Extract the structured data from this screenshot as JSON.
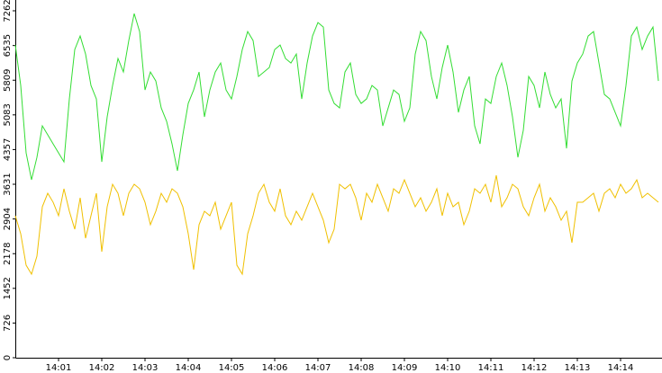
{
  "chart_data": {
    "type": "line",
    "categories": [
      null,
      null,
      null,
      null,
      null,
      null,
      null,
      null,
      "14:01",
      null,
      null,
      null,
      null,
      null,
      null,
      null,
      "14:02",
      null,
      null,
      null,
      null,
      null,
      null,
      null,
      "14:03",
      null,
      null,
      null,
      null,
      null,
      null,
      null,
      "14:04",
      null,
      null,
      null,
      null,
      null,
      null,
      null,
      "14:05",
      null,
      null,
      null,
      null,
      null,
      null,
      null,
      "14:06",
      null,
      null,
      null,
      null,
      null,
      null,
      null,
      "14:07",
      null,
      null,
      null,
      null,
      null,
      null,
      null,
      "14:08",
      null,
      null,
      null,
      null,
      null,
      null,
      null,
      "14:09",
      null,
      null,
      null,
      null,
      null,
      null,
      null,
      "14:10",
      null,
      null,
      null,
      null,
      null,
      null,
      null,
      "14:11",
      null,
      null,
      null,
      null,
      null,
      null,
      null,
      "14:12",
      null,
      null,
      null,
      null,
      null,
      null,
      null,
      "14:13",
      null,
      null,
      null,
      null,
      null,
      null,
      null,
      "14:14",
      null,
      null,
      null,
      null,
      null,
      null,
      null
    ],
    "series": [
      {
        "color": "#33dd33",
        "values": [
          6545,
          5699,
          4288,
          3724,
          4194,
          4853,
          4665,
          4476,
          4288,
          4100,
          5417,
          6451,
          6734,
          6357,
          5699,
          5417,
          4100,
          5041,
          5699,
          6263,
          5981,
          6640,
          7204,
          6828,
          5605,
          5981,
          5793,
          5229,
          4947,
          4476,
          3912,
          4665,
          5323,
          5605,
          5981,
          5041,
          5605,
          5981,
          6169,
          5605,
          5417,
          5887,
          6451,
          6828,
          6640,
          5887,
          5981,
          6075,
          6451,
          6545,
          6263,
          6169,
          6357,
          5417,
          6169,
          6734,
          7016,
          6922,
          5605,
          5323,
          5229,
          5981,
          6169,
          5511,
          5323,
          5417,
          5699,
          5605,
          4853,
          5229,
          5605,
          5511,
          4947,
          5229,
          6357,
          6828,
          6640,
          5887,
          5417,
          6075,
          6545,
          5981,
          5136,
          5605,
          5887,
          4853,
          4476,
          5417,
          5323,
          5887,
          6169,
          5699,
          5041,
          4194,
          4759,
          5887,
          5699,
          5229,
          5981,
          5511,
          5229,
          5417,
          4382,
          5793,
          6169,
          6357,
          6734,
          6828,
          6169,
          5511,
          5417,
          5136,
          4853,
          5699,
          6734,
          6922,
          6451,
          6734,
          6922,
          5793
        ]
      },
      {
        "color": "#f0c000",
        "values": [
          2972,
          2595,
          1937,
          1749,
          2125,
          3160,
          3442,
          3254,
          2972,
          3536,
          3066,
          2690,
          3348,
          2501,
          2972,
          3442,
          2219,
          3160,
          3630,
          3442,
          2972,
          3442,
          3630,
          3536,
          3254,
          2784,
          3066,
          3442,
          3254,
          3536,
          3442,
          3160,
          2595,
          1843,
          2784,
          3066,
          2972,
          3254,
          2690,
          2972,
          3254,
          1937,
          1749,
          2595,
          2972,
          3442,
          3630,
          3254,
          3066,
          3536,
          2972,
          2784,
          3066,
          2878,
          3160,
          3442,
          3160,
          2878,
          2407,
          2690,
          3630,
          3536,
          3630,
          3348,
          2878,
          3442,
          3254,
          3630,
          3348,
          3066,
          3536,
          3442,
          3724,
          3442,
          3160,
          3348,
          3066,
          3254,
          3536,
          2972,
          3442,
          3160,
          3254,
          2784,
          3066,
          3536,
          3442,
          3630,
          3254,
          3818,
          3160,
          3348,
          3630,
          3536,
          3160,
          2972,
          3348,
          3630,
          3066,
          3348,
          3160,
          2878,
          3066,
          2407,
          3254,
          3254,
          3348,
          3442,
          3066,
          3442,
          3536,
          3348,
          3630,
          3442,
          3536,
          3724,
          3348,
          3442,
          3348,
          3254
        ]
      }
    ],
    "ylim": [
      0,
      7262
    ],
    "yticks": [
      0,
      726,
      1452,
      2178,
      2904,
      3631,
      4357,
      5083,
      5809,
      6535,
      7262
    ]
  }
}
